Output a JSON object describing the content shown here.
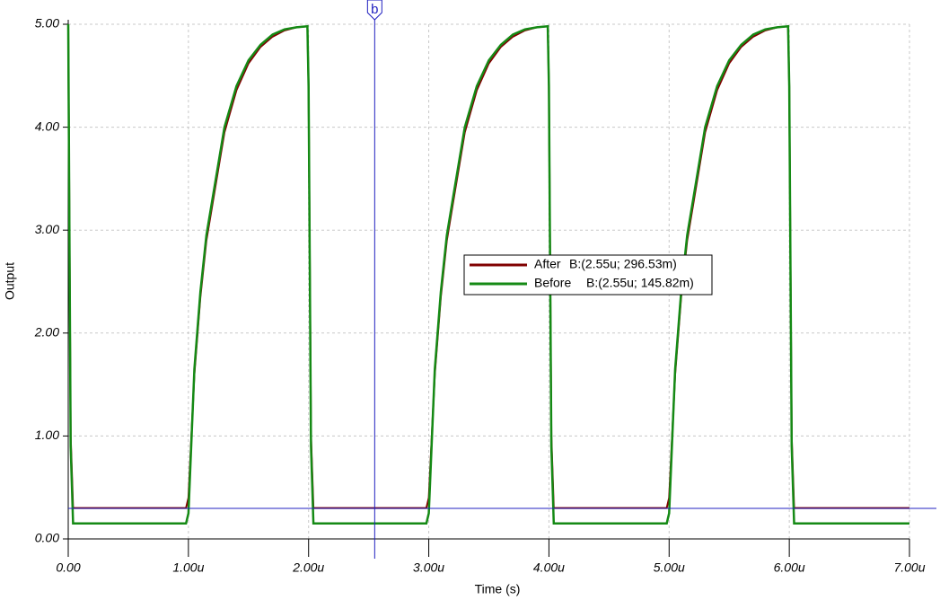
{
  "chart_data": {
    "type": "line",
    "x_label": "Time (s)",
    "y_label": "Output",
    "x": [
      0,
      0.02,
      0.04,
      0.98,
      1.0,
      1.05,
      1.1,
      1.15,
      1.2,
      1.3,
      1.4,
      1.5,
      1.6,
      1.7,
      1.8,
      1.9,
      1.99,
      2.0,
      2.02,
      2.04,
      2.98,
      3.0,
      3.05,
      3.1,
      3.15,
      3.2,
      3.3,
      3.4,
      3.5,
      3.6,
      3.7,
      3.8,
      3.9,
      3.99,
      4.0,
      4.02,
      4.04,
      4.98,
      5.0,
      5.05,
      5.1,
      5.15,
      5.2,
      5.3,
      5.4,
      5.5,
      5.6,
      5.7,
      5.8,
      5.9,
      5.99,
      6.0,
      6.02,
      6.04,
      7.0
    ],
    "series": [
      {
        "name": "After",
        "color": "#800000",
        "cursor_reading": "B:(2.55u; 296.53m)",
        "values": [
          5.0,
          1.0,
          0.3,
          0.3,
          0.4,
          1.6,
          2.35,
          2.9,
          3.25,
          3.95,
          4.36,
          4.62,
          4.78,
          4.88,
          4.94,
          4.97,
          4.98,
          4.4,
          1.0,
          0.3,
          0.3,
          0.4,
          1.6,
          2.35,
          2.9,
          3.25,
          3.95,
          4.36,
          4.62,
          4.78,
          4.88,
          4.94,
          4.97,
          4.98,
          4.4,
          1.0,
          0.3,
          0.3,
          0.4,
          1.6,
          2.35,
          2.9,
          3.25,
          3.95,
          4.36,
          4.62,
          4.78,
          4.88,
          4.94,
          4.97,
          4.98,
          4.4,
          1.0,
          0.3,
          0.3
        ]
      },
      {
        "name": "Before",
        "color": "#158a15",
        "cursor_reading": "B:(2.55u; 145.82m)",
        "values": [
          5.0,
          0.9,
          0.15,
          0.15,
          0.25,
          1.65,
          2.4,
          2.95,
          3.3,
          4.0,
          4.4,
          4.65,
          4.8,
          4.9,
          4.95,
          4.97,
          4.98,
          4.4,
          0.9,
          0.15,
          0.15,
          0.25,
          1.65,
          2.4,
          2.95,
          3.3,
          4.0,
          4.4,
          4.65,
          4.8,
          4.9,
          4.95,
          4.97,
          4.98,
          4.4,
          0.9,
          0.15,
          0.15,
          0.25,
          1.65,
          2.4,
          2.95,
          3.3,
          4.0,
          4.4,
          4.65,
          4.8,
          4.9,
          4.95,
          4.97,
          4.98,
          4.4,
          0.9,
          0.15,
          0.15
        ]
      }
    ],
    "xlim": [
      0,
      7
    ],
    "ylim": [
      0,
      5
    ],
    "xticks": [
      {
        "value": 0,
        "label": "0.00"
      },
      {
        "value": 1,
        "label": "1.00u"
      },
      {
        "value": 2,
        "label": "2.00u"
      },
      {
        "value": 3,
        "label": "3.00u"
      },
      {
        "value": 4,
        "label": "4.00u"
      },
      {
        "value": 5,
        "label": "5.00u"
      },
      {
        "value": 6,
        "label": "6.00u"
      },
      {
        "value": 7,
        "label": "7.00u"
      }
    ],
    "yticks": [
      {
        "value": 0,
        "label": "0.00"
      },
      {
        "value": 1,
        "label": "1.00"
      },
      {
        "value": 2,
        "label": "2.00"
      },
      {
        "value": 3,
        "label": "3.00"
      },
      {
        "value": 4,
        "label": "4.00"
      },
      {
        "value": 5,
        "label": "5.00"
      }
    ],
    "grid": true,
    "cursor": {
      "label": "b",
      "x": 2.55,
      "y": 0.29653,
      "color": "#2020c0"
    }
  }
}
